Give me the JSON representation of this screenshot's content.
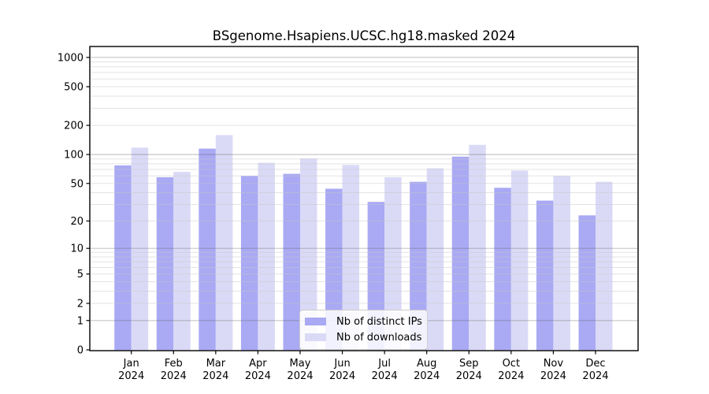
{
  "title": "BSgenome.Hsapiens.UCSC.hg18.masked 2024",
  "chart_data": {
    "type": "bar",
    "title": "BSgenome.Hsapiens.UCSC.hg18.masked 2024",
    "categories": [
      "Jan",
      "Feb",
      "Mar",
      "Apr",
      "May",
      "Jun",
      "Jul",
      "Aug",
      "Sep",
      "Oct",
      "Nov",
      "Dec"
    ],
    "year_label": "2024",
    "series": [
      {
        "name": "Nb of distinct IPs",
        "color": "#a9a9f4",
        "values": [
          77,
          58,
          115,
          60,
          63,
          44,
          32,
          52,
          95,
          45,
          33,
          23
        ]
      },
      {
        "name": "Nb of downloads",
        "color": "#dadaf7",
        "values": [
          118,
          66,
          159,
          82,
          91,
          78,
          58,
          72,
          126,
          68,
          60,
          52
        ]
      }
    ],
    "yscale": "log1p",
    "yticks": [
      0,
      1,
      2,
      5,
      10,
      20,
      50,
      100,
      200,
      500,
      1000
    ],
    "ylim": [
      0,
      1295
    ],
    "xlabel": "",
    "ylabel": "",
    "grid": "log major and minor horizontal lines, drawn over bars",
    "legend_position": "lower center",
    "colors": {
      "grid_major": "#c9c9c9",
      "grid_minor": "#e9e9e9",
      "axis": "#000000",
      "background": "#ffffff"
    }
  }
}
